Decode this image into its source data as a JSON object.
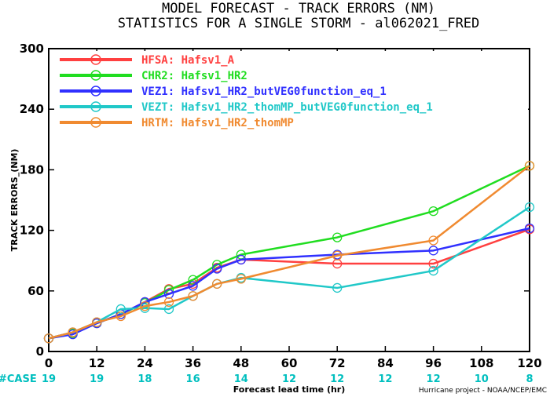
{
  "chart_data": {
    "type": "line",
    "title": "MODEL FORECAST - TRACK ERRORS (NM)",
    "subtitle": "STATISTICS FOR A SINGLE STORM - al062021_FRED",
    "xlabel": "Forecast lead time (hr)",
    "ylabel": "TRACK ERRORS_(NM)",
    "xlim": [
      0,
      120
    ],
    "ylim": [
      0,
      300
    ],
    "x_ticks": [
      "0",
      "12",
      "24",
      "36",
      "48",
      "60",
      "72",
      "84",
      "96",
      "108",
      "120"
    ],
    "y_ticks": [
      "0",
      "60",
      "120",
      "180",
      "240",
      "300"
    ],
    "case_label": "#CASE",
    "case_x": [
      0,
      12,
      24,
      36,
      48,
      60,
      72,
      84,
      96,
      108,
      120
    ],
    "case_counts": [
      "19",
      "19",
      "18",
      "16",
      "14",
      "12",
      "12",
      "12",
      "12",
      "10",
      "8"
    ],
    "credit": "Hurricane project - NOAA/NCEP/EMC",
    "legend_position": "top-left",
    "grid": false,
    "series": [
      {
        "name": "HFSA:  Hafsv1_A",
        "color": "#ff4040",
        "x": [
          0,
          6,
          12,
          18,
          24,
          30,
          36,
          42,
          48,
          72,
          96,
          120
        ],
        "y": [
          13,
          19,
          28,
          37,
          49,
          62,
          67,
          83,
          91,
          87,
          87,
          121
        ]
      },
      {
        "name": "CHR2:  Hafsv1_HR2",
        "color": "#20dd20",
        "x": [
          0,
          6,
          12,
          18,
          24,
          30,
          36,
          42,
          48,
          72,
          96,
          120
        ],
        "y": [
          13,
          18,
          28,
          37,
          48,
          61,
          71,
          86,
          96,
          113,
          139,
          184
        ]
      },
      {
        "name": "VEZ1:  Hafsv1_HR2_butVEG0function_eq_1",
        "color": "#3030ff",
        "x": [
          0,
          6,
          12,
          18,
          24,
          30,
          36,
          42,
          48,
          72,
          96,
          120
        ],
        "y": [
          13,
          17,
          28,
          37,
          49,
          57,
          65,
          82,
          91,
          96,
          100,
          122
        ]
      },
      {
        "name": "VEZT:  Hafsv1_HR2_thomMP_butVEG0function_eq_1",
        "color": "#20c8c8",
        "x": [
          0,
          6,
          12,
          18,
          24,
          30,
          36,
          42,
          48,
          72,
          96,
          120
        ],
        "y": [
          13,
          19,
          29,
          42,
          43,
          42,
          55,
          67,
          73,
          63,
          80,
          143
        ]
      },
      {
        "name": "HRTM:  Hafsv1_HR2_thomMP",
        "color": "#f08a30",
        "x": [
          0,
          6,
          12,
          18,
          24,
          30,
          36,
          42,
          48,
          72,
          96,
          120
        ],
        "y": [
          13,
          19,
          29,
          35,
          45,
          49,
          55,
          67,
          72,
          95,
          110,
          184
        ]
      }
    ]
  }
}
